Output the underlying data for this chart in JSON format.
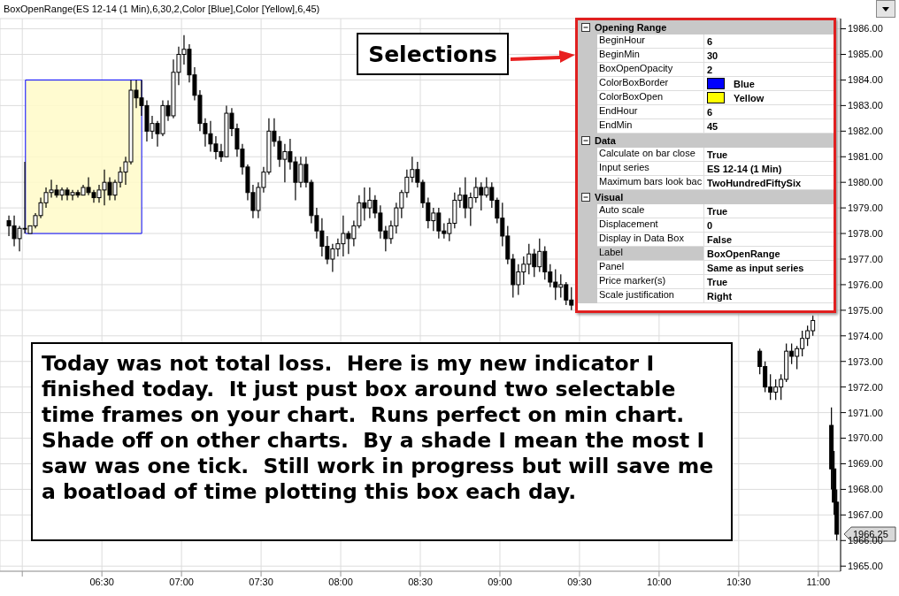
{
  "chart_data": {
    "type": "candlestick",
    "title": "BoxOpenRange(ES 12-14 (1 Min),6,30,2,Color [Blue],Color [Yellow],6,45)",
    "color": "#000000",
    "x": [
      5.9167,
      5.95,
      5.9833,
      6.0167,
      6.05,
      6.0833,
      6.1167,
      6.15,
      6.1833,
      6.2167,
      6.25,
      6.2833,
      6.3167,
      6.35,
      6.3833,
      6.4167,
      6.45,
      6.4833,
      6.5167,
      6.55,
      6.5833,
      6.6167,
      6.65,
      6.6833,
      6.7167,
      6.75,
      6.7833,
      6.8167,
      6.85,
      6.8833,
      6.9167,
      6.95,
      6.9833,
      7.0167,
      7.05,
      7.0833,
      7.1167,
      7.15,
      7.1833,
      7.2167,
      7.25,
      7.2833,
      7.3167,
      7.35,
      7.3833,
      7.4167,
      7.45,
      7.4833,
      7.5167,
      7.55,
      7.5833,
      7.6167,
      7.65,
      7.6833,
      7.7167,
      7.75,
      7.7833,
      7.8167,
      7.85,
      7.8833,
      7.9167,
      7.95,
      7.9833,
      8.0167,
      8.05,
      8.0833,
      8.1167,
      8.15,
      8.1833,
      8.2167,
      8.25,
      8.2833,
      8.3167,
      8.35,
      8.3833,
      8.4167,
      8.45,
      8.4833,
      8.5167,
      8.55,
      8.5833,
      8.6167,
      8.65,
      8.6833,
      8.7167,
      8.75,
      8.7833,
      8.8167,
      8.85,
      8.8833,
      8.9167,
      8.95,
      8.9833,
      9.0167,
      9.05,
      9.0833,
      9.1167,
      9.15,
      9.1833,
      9.2167,
      9.25,
      9.2833,
      9.3167,
      9.35,
      9.3833,
      9.4167,
      9.45,
      10.6333,
      10.6667,
      10.7,
      10.7333,
      10.7667,
      10.8,
      10.8333,
      10.8667,
      10.9,
      10.9333,
      10.9667,
      11.0833,
      11.1,
      11.1167
    ],
    "ohlc": [
      [
        1978.5,
        1978.7,
        1977.9,
        1978.3
      ],
      [
        1978.3,
        1978.7,
        1977.5,
        1977.8
      ],
      [
        1977.8,
        1978.3,
        1977.3,
        1978.2
      ],
      [
        1978.2,
        1980.8,
        1978.0,
        1978.2
      ],
      [
        1978.0,
        1978.3,
        1978.0,
        1978.3
      ],
      [
        1978.3,
        1978.8,
        1978.2,
        1978.7
      ],
      [
        1978.7,
        1979.4,
        1978.6,
        1979.2
      ],
      [
        1979.2,
        1979.8,
        1979.0,
        1979.6
      ],
      [
        1979.6,
        1980.1,
        1979.4,
        1979.7
      ],
      [
        1979.7,
        1979.9,
        1979.4,
        1979.5
      ],
      [
        1979.5,
        1979.8,
        1979.3,
        1979.7
      ],
      [
        1979.7,
        1979.8,
        1979.3,
        1979.5
      ],
      [
        1979.5,
        1979.7,
        1979.3,
        1979.6
      ],
      [
        1979.6,
        1979.7,
        1979.4,
        1979.5
      ],
      [
        1979.5,
        1979.9,
        1979.5,
        1979.8
      ],
      [
        1979.8,
        1980.2,
        1979.5,
        1979.6
      ],
      [
        1979.6,
        1979.7,
        1979.2,
        1979.4
      ],
      [
        1979.4,
        1979.9,
        1979.2,
        1979.7
      ],
      [
        1979.7,
        1980.5,
        1979.1,
        1980.0
      ],
      [
        1980.0,
        1980.2,
        1979.3,
        1979.5
      ],
      [
        1979.5,
        1980.1,
        1979.3,
        1980.0
      ],
      [
        1980.0,
        1980.6,
        1979.8,
        1980.4
      ],
      [
        1980.4,
        1981.0,
        1979.9,
        1980.8
      ],
      [
        1980.8,
        1984.0,
        1980.7,
        1983.6
      ],
      [
        1983.6,
        1984.0,
        1982.9,
        1983.3
      ],
      [
        1983.3,
        1984.0,
        1982.6,
        1983.0
      ],
      [
        1983.0,
        1983.2,
        1981.6,
        1982.0
      ],
      [
        1982.0,
        1982.6,
        1981.7,
        1982.3
      ],
      [
        1982.3,
        1982.4,
        1981.4,
        1981.9
      ],
      [
        1981.9,
        1983.2,
        1981.8,
        1983.0
      ],
      [
        1983.0,
        1983.2,
        1982.4,
        1982.6
      ],
      [
        1982.6,
        1984.8,
        1982.5,
        1984.3
      ],
      [
        1984.3,
        1985.3,
        1983.8,
        1985.0
      ],
      [
        1985.0,
        1985.75,
        1984.6,
        1985.2
      ],
      [
        1985.2,
        1985.4,
        1983.9,
        1984.2
      ],
      [
        1984.2,
        1984.5,
        1983.2,
        1983.4
      ],
      [
        1983.4,
        1983.6,
        1982.0,
        1982.3
      ],
      [
        1982.3,
        1982.5,
        1981.4,
        1981.9
      ],
      [
        1981.9,
        1982.4,
        1981.2,
        1981.5
      ],
      [
        1981.5,
        1981.8,
        1980.9,
        1981.2
      ],
      [
        1981.2,
        1981.5,
        1980.8,
        1981.0
      ],
      [
        1981.0,
        1983.0,
        1981.0,
        1982.7
      ],
      [
        1982.7,
        1982.9,
        1981.8,
        1982.1
      ],
      [
        1982.1,
        1982.3,
        1981.0,
        1981.3
      ],
      [
        1981.3,
        1981.5,
        1980.3,
        1980.6
      ],
      [
        1980.6,
        1980.7,
        1979.3,
        1979.6
      ],
      [
        1979.6,
        1979.9,
        1978.6,
        1978.9
      ],
      [
        1978.9,
        1980.0,
        1978.6,
        1979.8
      ],
      [
        1979.8,
        1980.6,
        1979.6,
        1980.4
      ],
      [
        1980.4,
        1982.5,
        1980.3,
        1982.0
      ],
      [
        1982.0,
        1982.5,
        1981.4,
        1981.6
      ],
      [
        1981.6,
        1981.8,
        1980.6,
        1980.9
      ],
      [
        1980.9,
        1981.5,
        1980.0,
        1981.2
      ],
      [
        1981.2,
        1981.7,
        1980.5,
        1980.8
      ],
      [
        1980.8,
        1981.0,
        1979.3,
        1980.0
      ],
      [
        1980.0,
        1981.0,
        1979.8,
        1980.7
      ],
      [
        1980.7,
        1981.0,
        1979.8,
        1980.0
      ],
      [
        1980.0,
        1980.1,
        1978.4,
        1978.7
      ],
      [
        1978.7,
        1979.0,
        1977.8,
        1978.1
      ],
      [
        1978.1,
        1978.6,
        1977.1,
        1977.5
      ],
      [
        1977.5,
        1977.9,
        1976.8,
        1977.0
      ],
      [
        1977.0,
        1977.6,
        1976.5,
        1977.4
      ],
      [
        1977.4,
        1977.8,
        1977.1,
        1977.6
      ],
      [
        1977.6,
        1978.7,
        1977.1,
        1978.0
      ],
      [
        1978.0,
        1978.1,
        1977.2,
        1977.8
      ],
      [
        1977.8,
        1978.5,
        1977.5,
        1978.3
      ],
      [
        1978.3,
        1979.5,
        1978.2,
        1979.2
      ],
      [
        1979.2,
        1979.8,
        1978.5,
        1979.0
      ],
      [
        1979.0,
        1979.8,
        1978.6,
        1979.3
      ],
      [
        1979.3,
        1979.5,
        1978.6,
        1978.8
      ],
      [
        1978.8,
        1979.1,
        1977.8,
        1978.1
      ],
      [
        1978.1,
        1978.3,
        1977.3,
        1977.8
      ],
      [
        1977.8,
        1978.5,
        1977.6,
        1978.3
      ],
      [
        1978.3,
        1979.2,
        1978.0,
        1979.0
      ],
      [
        1979.0,
        1979.7,
        1978.6,
        1979.6
      ],
      [
        1979.6,
        1980.5,
        1979.4,
        1980.2
      ],
      [
        1980.2,
        1981.0,
        1980.0,
        1980.5
      ],
      [
        1980.5,
        1980.8,
        1979.8,
        1980.0
      ],
      [
        1980.0,
        1980.1,
        1979.0,
        1979.2
      ],
      [
        1979.2,
        1979.4,
        1978.2,
        1978.5
      ],
      [
        1978.5,
        1979.0,
        1978.1,
        1978.8
      ],
      [
        1978.8,
        1979.0,
        1977.8,
        1978.1
      ],
      [
        1978.1,
        1978.4,
        1977.8,
        1978.0
      ],
      [
        1978.0,
        1978.6,
        1977.7,
        1978.4
      ],
      [
        1978.4,
        1979.6,
        1978.2,
        1979.3
      ],
      [
        1979.3,
        1979.8,
        1979.0,
        1979.5
      ],
      [
        1979.5,
        1980.2,
        1978.6,
        1979.0
      ],
      [
        1979.0,
        1979.6,
        1978.3,
        1979.4
      ],
      [
        1979.4,
        1980.2,
        1979.2,
        1979.8
      ],
      [
        1979.8,
        1980.0,
        1978.9,
        1979.5
      ],
      [
        1979.5,
        1980.2,
        1979.4,
        1979.8
      ],
      [
        1979.8,
        1980.0,
        1979.0,
        1979.3
      ],
      [
        1979.3,
        1979.4,
        1978.4,
        1978.6
      ],
      [
        1978.6,
        1979.2,
        1977.5,
        1977.9
      ],
      [
        1977.9,
        1978.3,
        1976.8,
        1977.0
      ],
      [
        1977.0,
        1977.2,
        1975.5,
        1976.0
      ],
      [
        1976.0,
        1976.8,
        1975.6,
        1976.5
      ],
      [
        1976.5,
        1977.1,
        1976.0,
        1976.8
      ],
      [
        1976.8,
        1977.6,
        1976.4,
        1977.2
      ],
      [
        1977.2,
        1977.4,
        1976.3,
        1976.7
      ],
      [
        1976.7,
        1977.8,
        1976.5,
        1977.3
      ],
      [
        1977.3,
        1977.5,
        1976.2,
        1976.5
      ],
      [
        1976.5,
        1976.8,
        1975.9,
        1976.1
      ],
      [
        1976.1,
        1976.6,
        1975.4,
        1975.9
      ],
      [
        1975.9,
        1976.4,
        1975.5,
        1976.0
      ],
      [
        1976.0,
        1976.1,
        1975.2,
        1975.4
      ],
      [
        1975.4,
        1975.9,
        1975.0,
        1975.2
      ],
      [
        1973.4,
        1973.5,
        1972.5,
        1972.8
      ],
      [
        1972.8,
        1973.0,
        1971.8,
        1972.0
      ],
      [
        1972.0,
        1972.5,
        1971.5,
        1971.8
      ],
      [
        1971.8,
        1972.3,
        1971.5,
        1972.0
      ],
      [
        1972.0,
        1972.5,
        1971.5,
        1972.3
      ],
      [
        1972.3,
        1973.7,
        1972.2,
        1973.4
      ],
      [
        1973.4,
        1973.7,
        1972.9,
        1973.2
      ],
      [
        1973.2,
        1973.6,
        1972.7,
        1973.5
      ],
      [
        1973.5,
        1974.2,
        1973.2,
        1973.9
      ],
      [
        1973.9,
        1974.4,
        1973.6,
        1974.2
      ],
      [
        1974.2,
        1974.8,
        1974.0,
        1974.6
      ],
      [
        1970.5,
        1971.2,
        1968.0,
        1968.8
      ],
      [
        1968.8,
        1969.5,
        1967.0,
        1967.5
      ],
      [
        1967.5,
        1968.0,
        1966.0,
        1966.25
      ]
    ],
    "xlim": [
      5.86,
      11.14
    ],
    "ylim": [
      1964.8,
      1986.4
    ],
    "xticks": [
      {
        "value": 6,
        "label": null
      },
      {
        "value": 6.5,
        "label": "06:30"
      },
      {
        "value": 7,
        "label": "07:00"
      },
      {
        "value": 7.5,
        "label": "07:30"
      },
      {
        "value": 8,
        "label": "08:00"
      },
      {
        "value": 8.5,
        "label": "08:30"
      },
      {
        "value": 9,
        "label": "09:00"
      },
      {
        "value": 9.5,
        "label": "09:30"
      },
      {
        "value": 10,
        "label": "10:00"
      },
      {
        "value": 10.5,
        "label": "10:30"
      },
      {
        "value": 11,
        "label": "11:00"
      }
    ],
    "yticks": [
      {
        "value": 1965,
        "label": "1965.00"
      },
      {
        "value": 1966,
        "label": "1966.00"
      },
      {
        "value": 1967,
        "label": "1967.00"
      },
      {
        "value": 1968,
        "label": "1968.00"
      },
      {
        "value": 1969,
        "label": "1969.00"
      },
      {
        "value": 1970,
        "label": "1970.00"
      },
      {
        "value": 1971,
        "label": "1971.00"
      },
      {
        "value": 1972,
        "label": "1972.00"
      },
      {
        "value": 1973,
        "label": "1973.00"
      },
      {
        "value": 1974,
        "label": "1974.00"
      },
      {
        "value": 1975,
        "label": "1975.00"
      },
      {
        "value": 1976,
        "label": "1976.00"
      },
      {
        "value": 1977,
        "label": "1977.00"
      },
      {
        "value": 1978,
        "label": "1978.00"
      },
      {
        "value": 1979,
        "label": "1979.00"
      },
      {
        "value": 1980,
        "label": "1980.00"
      },
      {
        "value": 1981,
        "label": "1981.00"
      },
      {
        "value": 1982,
        "label": "1982.00"
      },
      {
        "value": 1983,
        "label": "1983.00"
      },
      {
        "value": 1984,
        "label": "1984.00"
      },
      {
        "value": 1985,
        "label": "1985.00"
      },
      {
        "value": 1986,
        "label": "1986.00"
      }
    ],
    "grid": true,
    "bands": [
      {
        "axis": "x",
        "from": 6.02,
        "to": 6.75,
        "label": null,
        "color": "#fffac8"
      }
    ],
    "annotations": [
      "Selections",
      "Today was not total loss.  Here is my new indicator I finished today.  It just pust box around two selectable time frames on your chart.  Runs perfect on min chart.  Shade off on other charts.  By a shade I mean the most I saw was one tick.  Still work in progress but will save me a boatload of time plotting this box each day.",
      "Opening Range",
      "BeginHour",
      "6",
      "BeginMin",
      "30",
      "BoxOpenOpacity",
      "2",
      "ColorBoxBorder",
      "Blue",
      "ColorBoxOpen",
      "Yellow",
      "EndHour",
      "6",
      "EndMin",
      "45",
      "Data",
      "Calculate on bar close",
      "True",
      "Input series",
      "ES 12-14 (1 Min)",
      "Maximum bars look bac",
      "TwoHundredFiftySix",
      "Visual",
      "Auto scale",
      "True",
      "Displacement",
      "0",
      "Display in Data Box",
      "False",
      "Label",
      "BoxOpenRange",
      "Panel",
      "Same as input series",
      "Price marker(s)",
      "True",
      "Scale justification",
      "Right",
      "1966.25"
    ]
  }
}
